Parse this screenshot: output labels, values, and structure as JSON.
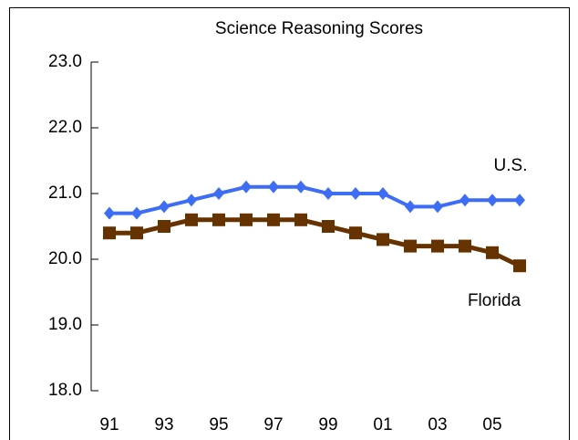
{
  "chart_data": {
    "type": "line",
    "title": "Science Reasoning Scores",
    "categories": [
      "91",
      null,
      "93",
      null,
      "95",
      null,
      "97",
      null,
      "99",
      null,
      "01",
      null,
      "03",
      null,
      "05",
      null
    ],
    "series": [
      {
        "name": "U.S.",
        "color": "#3d6cf5",
        "values": [
          20.7,
          20.7,
          20.8,
          20.9,
          21.0,
          21.1,
          21.1,
          21.1,
          21.0,
          21.0,
          21.0,
          20.8,
          20.8,
          20.9,
          20.9,
          20.9
        ]
      },
      {
        "name": "Florida",
        "color": "#663300",
        "values": [
          20.4,
          20.4,
          20.5,
          20.6,
          20.6,
          20.6,
          20.6,
          20.6,
          20.5,
          20.4,
          20.3,
          20.2,
          20.2,
          20.2,
          20.1,
          19.9
        ]
      }
    ],
    "ylim": [
      18,
      23
    ],
    "yticks": [
      {
        "value": 18,
        "label": "18.0"
      },
      {
        "value": 19,
        "label": "19.0"
      },
      {
        "value": 20,
        "label": "20.0"
      },
      {
        "value": 21,
        "label": "21.0"
      },
      {
        "value": 22,
        "label": "22.0"
      },
      {
        "value": 23,
        "label": "23.0"
      }
    ]
  }
}
